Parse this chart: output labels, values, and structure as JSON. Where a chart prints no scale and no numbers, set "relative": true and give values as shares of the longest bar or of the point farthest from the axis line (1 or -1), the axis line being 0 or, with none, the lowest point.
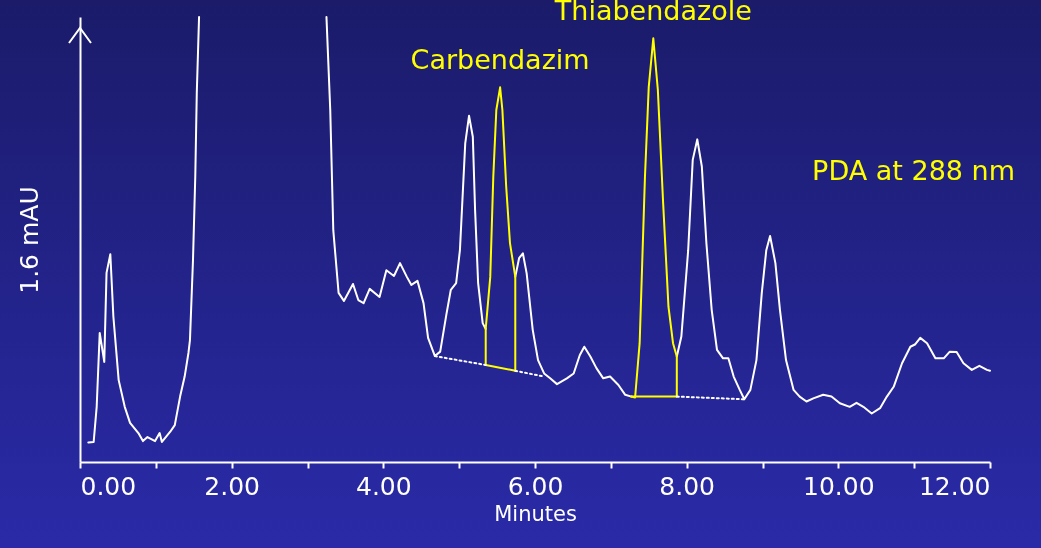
{
  "chart_data": {
    "type": "line",
    "xlabel": "Minutes",
    "ylabel": "1.6 mAU",
    "relative": true,
    "xlim": [
      0,
      12
    ],
    "xticks": [
      {
        "value": 0,
        "label": "0.00"
      },
      {
        "value": 1,
        "label": null
      },
      {
        "value": 2,
        "label": "2.00"
      },
      {
        "value": 3,
        "label": null
      },
      {
        "value": 4,
        "label": "4.00"
      },
      {
        "value": 5,
        "label": null
      },
      {
        "value": 6,
        "label": "6.00"
      },
      {
        "value": 7,
        "label": null
      },
      {
        "value": 8,
        "label": "8.00"
      },
      {
        "value": 9,
        "label": null
      },
      {
        "value": 10,
        "label": "10.00"
      },
      {
        "value": 11,
        "label": null
      },
      {
        "value": 12,
        "label": "12.00"
      }
    ],
    "series": [
      {
        "color": "#ffffff",
        "line_style": "solid",
        "x": [
          0.11,
          0.18,
          0.22,
          0.26,
          0.32,
          0.35,
          0.4,
          0.44,
          0.51,
          0.59,
          0.66,
          0.77,
          0.83,
          0.89,
          0.99,
          1.05,
          1.08,
          1.19,
          1.25,
          1.32,
          1.38,
          1.43,
          1.45,
          1.49,
          1.52,
          1.54,
          1.57,
          2.4,
          3.25,
          3.3,
          3.34,
          3.41,
          3.48,
          3.6,
          3.67,
          3.74,
          3.82,
          3.95,
          4.04,
          4.14,
          4.22,
          4.31,
          4.37,
          4.45,
          4.53,
          4.59,
          4.68,
          4.75,
          4.83,
          4.89,
          4.96,
          5.01,
          5.08,
          5.13,
          5.18,
          5.21,
          5.25,
          5.31,
          5.35,
          5.5,
          5.74,
          5.79,
          5.84,
          5.89,
          5.97,
          6.04,
          6.12,
          6.2,
          6.29,
          6.42,
          6.51,
          6.59,
          6.65,
          6.73,
          6.81,
          6.9,
          6.99,
          7.1,
          7.19,
          7.27,
          7.6,
          7.87,
          7.93,
          8.02,
          8.08,
          8.14,
          8.2,
          8.26,
          8.33,
          8.4,
          8.48,
          8.55,
          8.62,
          8.7,
          8.76,
          8.84,
          8.92,
          8.99,
          9.05,
          9.1,
          9.17,
          9.23,
          9.31,
          9.41,
          9.49,
          9.58,
          9.67,
          9.8,
          9.91,
          10.02,
          10.15,
          10.24,
          10.33,
          10.44,
          10.55,
          10.64,
          10.73,
          10.84,
          10.95,
          11.01,
          11.08,
          11.17,
          11.28,
          11.39,
          11.47,
          11.56,
          11.65,
          11.76,
          11.86,
          11.96,
          12.0
        ],
        "values": [
          0.044,
          0.045,
          0.124,
          0.29,
          0.225,
          0.425,
          0.467,
          0.327,
          0.184,
          0.124,
          0.088,
          0.065,
          0.047,
          0.056,
          0.047,
          0.065,
          0.045,
          0.068,
          0.083,
          0.147,
          0.192,
          0.245,
          0.274,
          0.454,
          0.641,
          0.829,
          1.0,
          null,
          1.0,
          0.791,
          0.521,
          0.38,
          0.362,
          0.4,
          0.364,
          0.357,
          0.389,
          0.371,
          0.431,
          0.418,
          0.447,
          0.416,
          0.398,
          0.407,
          0.357,
          0.279,
          0.238,
          0.248,
          0.33,
          0.387,
          0.402,
          0.476,
          0.716,
          0.778,
          0.731,
          0.566,
          0.402,
          0.312,
          0.299,
          null,
          0.416,
          0.458,
          0.469,
          0.424,
          0.297,
          0.229,
          0.199,
          0.188,
          0.175,
          0.188,
          0.199,
          0.24,
          0.259,
          0.237,
          0.211,
          0.188,
          0.192,
          0.173,
          0.151,
          0.147,
          null,
          0.237,
          0.282,
          0.476,
          0.679,
          0.725,
          0.664,
          0.492,
          0.342,
          0.252,
          0.233,
          0.233,
          0.192,
          0.162,
          0.141,
          0.162,
          0.229,
          0.379,
          0.476,
          0.508,
          0.447,
          0.342,
          0.229,
          0.162,
          0.147,
          0.136,
          0.143,
          0.151,
          0.147,
          0.132,
          0.124,
          0.133,
          0.124,
          0.109,
          0.121,
          0.147,
          0.169,
          0.222,
          0.259,
          0.264,
          0.279,
          0.267,
          0.233,
          0.233,
          0.248,
          0.247,
          0.222,
          0.207,
          0.216,
          0.207,
          0.205
        ]
      },
      {
        "color": "#ffff00",
        "line_style": "solid",
        "x": [
          5.35,
          5.35,
          5.41,
          5.45,
          5.49,
          5.54,
          5.57,
          5.62,
          5.67,
          5.74,
          5.74
        ],
        "values": [
          0.218,
          0.299,
          0.416,
          0.641,
          0.791,
          0.842,
          0.791,
          0.619,
          0.492,
          0.416,
          0.205
        ]
      },
      {
        "color": "#ffff00",
        "line_style": "solid",
        "x": [
          5.35,
          5.74
        ],
        "values": [
          0.218,
          0.205
        ]
      },
      {
        "color": "#ffff00",
        "line_style": "solid",
        "x": [
          7.27,
          7.32,
          7.38,
          7.45,
          7.5,
          7.56,
          7.62,
          7.69,
          7.76,
          7.82,
          7.87,
          7.87
        ],
        "values": [
          0.147,
          0.145,
          0.267,
          0.641,
          0.843,
          0.952,
          0.836,
          0.581,
          0.349,
          0.267,
          0.237,
          0.147
        ]
      },
      {
        "color": "#ffff00",
        "line_style": "solid",
        "x": [
          7.27,
          7.87
        ],
        "values": [
          0.147,
          0.147
        ]
      },
      {
        "color": "#ffffff",
        "line_style": "dotted",
        "x": [
          4.68,
          5.35
        ],
        "values": [
          0.238,
          0.218
        ]
      },
      {
        "color": "#ffffff",
        "line_style": "dotted",
        "x": [
          5.74,
          6.12
        ],
        "values": [
          0.205,
          0.192
        ]
      },
      {
        "color": "#ffffff",
        "line_style": "dotted",
        "x": [
          7.87,
          8.76
        ],
        "values": [
          0.147,
          0.141
        ]
      }
    ],
    "annotations": [
      {
        "text": "Carbendazim",
        "x": 5.54,
        "y": 0.842
      },
      {
        "text": "Thiabendazole",
        "x": 7.56,
        "y": 0.952
      },
      "PDA at 288 nm"
    ]
  }
}
